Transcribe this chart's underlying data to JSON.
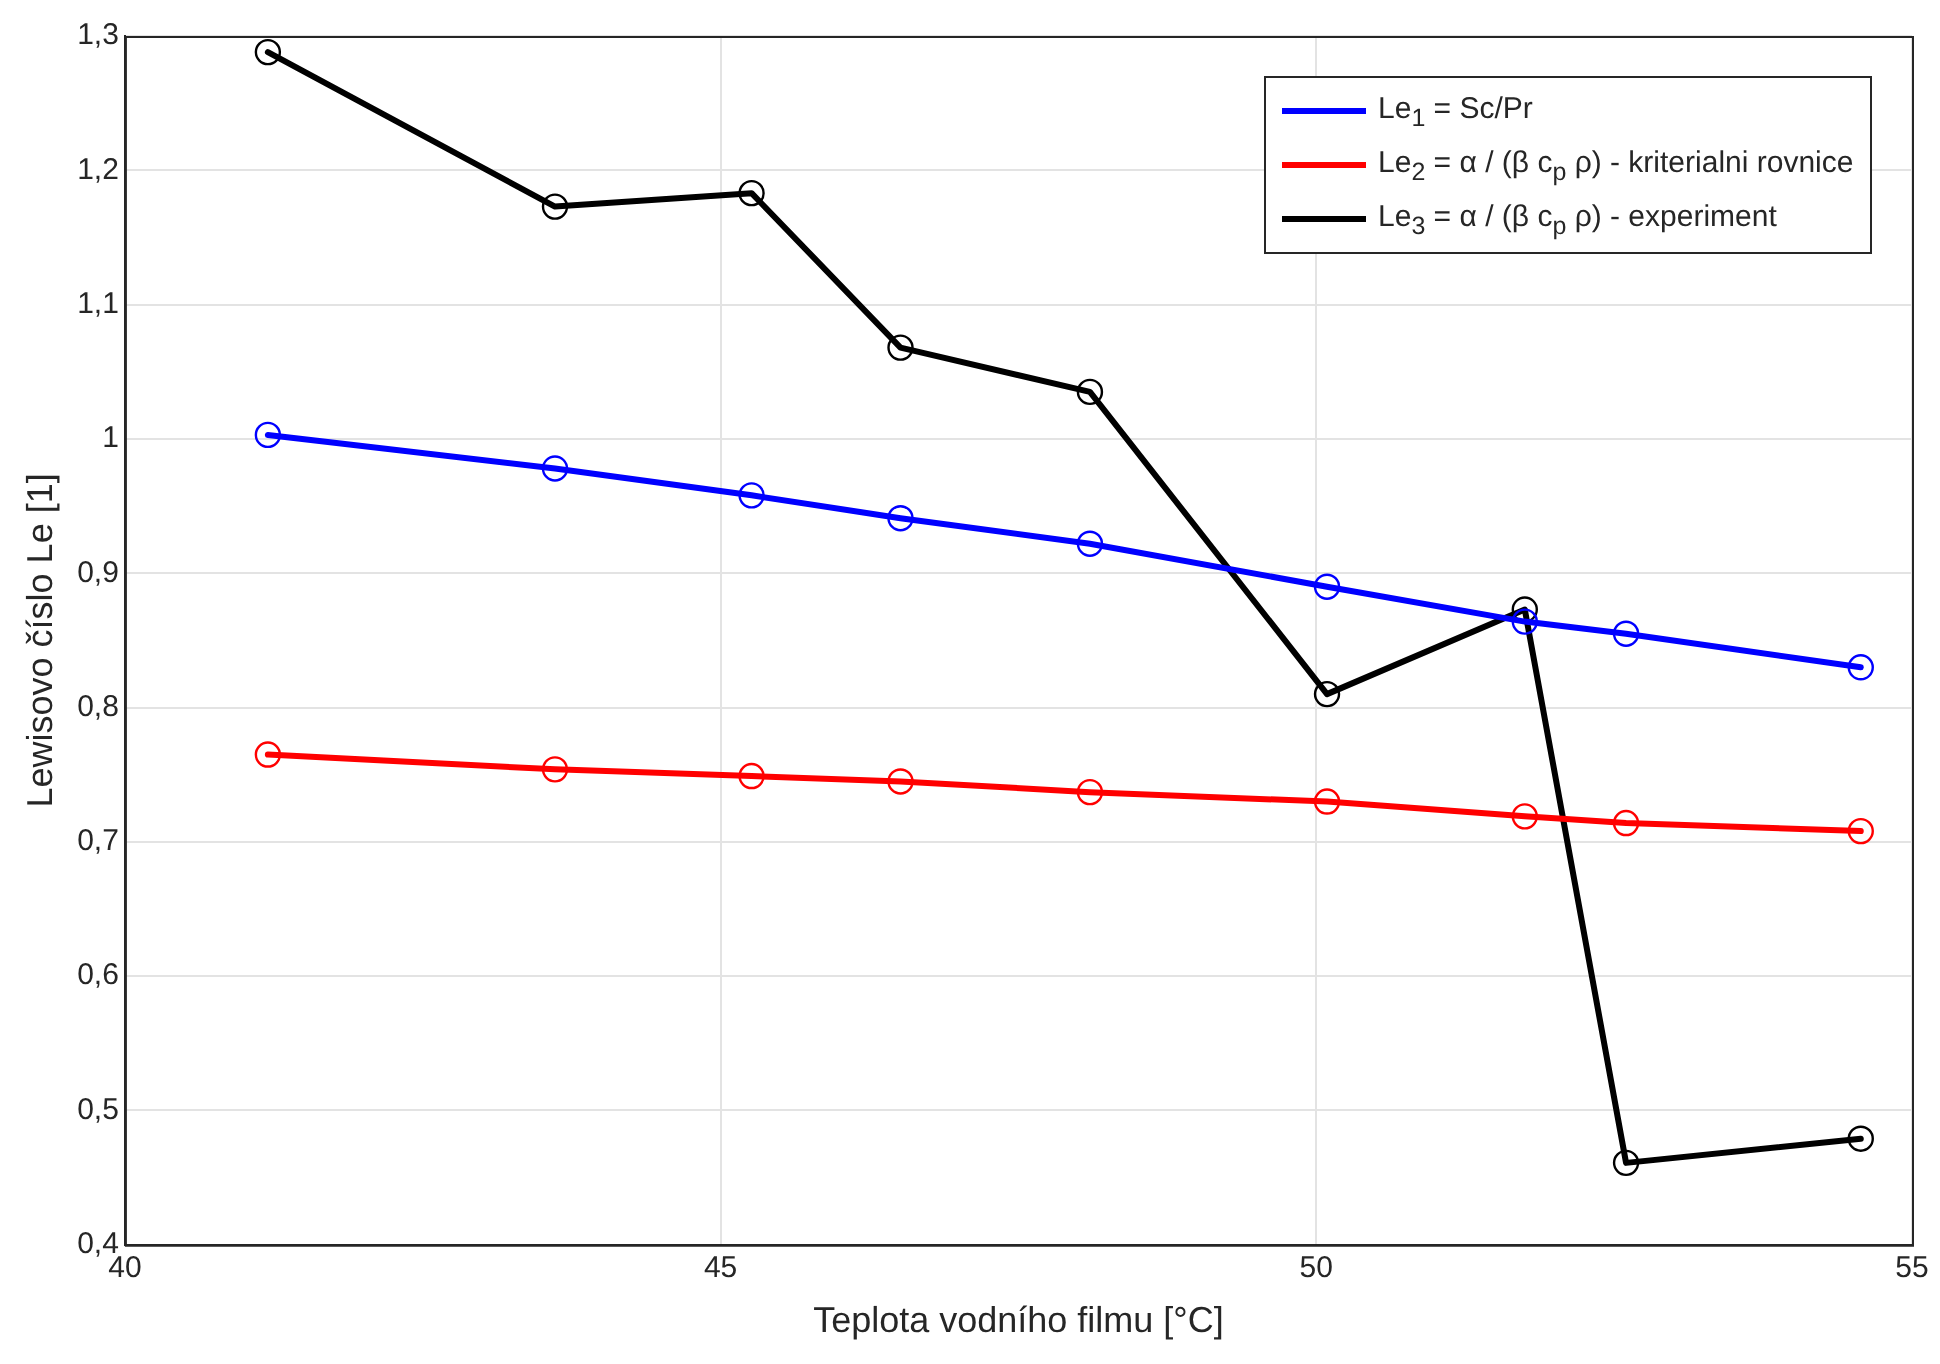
{
  "chart_data": {
    "type": "line",
    "xlabel": "Teplota vodního filmu [°C]",
    "ylabel": "Lewisovo číslo Le [1]",
    "x": [
      41.2,
      43.61,
      45.26,
      46.51,
      48.1,
      50.09,
      51.75,
      52.6,
      54.57
    ],
    "series": [
      {
        "name": "Le$_{1}$ = Sc/Pr",
        "color": "#0000ff",
        "values": [
          1.003,
          0.978,
          0.958,
          0.941,
          0.922,
          0.89,
          0.864,
          0.855,
          0.83
        ]
      },
      {
        "name": "Le$_{2}$ = α / (β c$_{p}$ ρ) - kriterialni rovnice",
        "color": "#ff0000",
        "values": [
          0.765,
          0.754,
          0.749,
          0.745,
          0.737,
          0.73,
          0.719,
          0.714,
          0.708
        ]
      },
      {
        "name": "Le$_{3}$ = α / (β c$_{p}$ ρ) - experiment",
        "color": "#000000",
        "values": [
          1.288,
          1.173,
          1.183,
          1.068,
          1.035,
          0.81,
          0.873,
          0.461,
          0.479
        ]
      }
    ],
    "xlim": [
      40,
      55
    ],
    "xticks": [
      40,
      45,
      50,
      55
    ],
    "ylim": [
      0.4,
      1.3
    ],
    "yticks": [
      {
        "value": 0.4,
        "label": "0,4"
      },
      {
        "value": 0.5,
        "label": "0,5"
      },
      {
        "value": 0.6,
        "label": "0,6"
      },
      {
        "value": 0.7,
        "label": "0,7"
      },
      {
        "value": 0.8,
        "label": "0,8"
      },
      {
        "value": 0.9,
        "label": "0,9"
      },
      1,
      {
        "value": 1.1,
        "label": "1,1"
      },
      {
        "value": 1.2,
        "label": "1,2"
      },
      {
        "value": 1.3,
        "label": "1,3"
      }
    ],
    "grid": true,
    "legend": "top right",
    "marker": "circle",
    "line_style": "solid"
  }
}
